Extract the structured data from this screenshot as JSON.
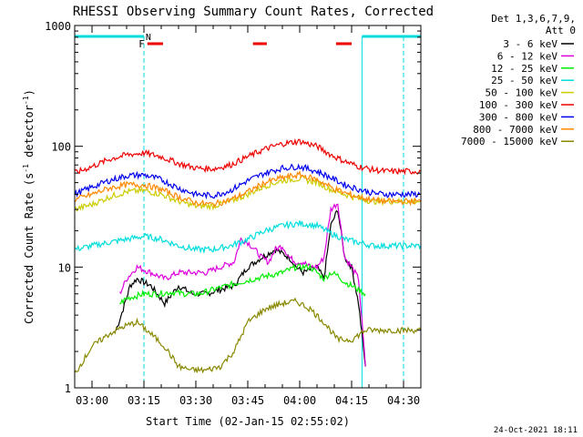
{
  "chart_data": {
    "type": "line",
    "title": "RHESSI Observing Summary Count Rates, Corrected",
    "xlabel": "Start Time (02-Jan-15 02:55:02)",
    "ylabel_main": "Corrected Count Rate (s",
    "ylabel_sup1": "-1",
    "ylabel_mid": " detector",
    "ylabel_sup2": "-1",
    "ylabel_end": ")",
    "yscale": "log",
    "ylim": [
      1,
      1000
    ],
    "xlim_minutes": [
      0,
      100
    ],
    "x_ticks": [
      {
        "label": "03:00",
        "minute": 5
      },
      {
        "label": "03:15",
        "minute": 20
      },
      {
        "label": "03:30",
        "minute": 35
      },
      {
        "label": "03:45",
        "minute": 50
      },
      {
        "label": "04:00",
        "minute": 65
      },
      {
        "label": "04:15",
        "minute": 80
      },
      {
        "label": "04:30",
        "minute": 95
      }
    ],
    "y_ticks": [
      {
        "label": "1",
        "value": 1
      },
      {
        "label": "10",
        "value": 10
      },
      {
        "label": "100",
        "value": 100
      },
      {
        "label": "1000",
        "value": 1000
      }
    ],
    "legend_header": [
      "Det 1,3,6,7,9,",
      "Att 0"
    ],
    "legend_position": "right",
    "series": [
      {
        "name": "3 - 6 keV",
        "color": "#000000",
        "points": [
          [
            12,
            3
          ],
          [
            14,
            4.5
          ],
          [
            16,
            7
          ],
          [
            18,
            8
          ],
          [
            22,
            7
          ],
          [
            26,
            5
          ],
          [
            30,
            7
          ],
          [
            34,
            6
          ],
          [
            38,
            6
          ],
          [
            42,
            6.5
          ],
          [
            46,
            7
          ],
          [
            50,
            10
          ],
          [
            54,
            12
          ],
          [
            58,
            14
          ],
          [
            62,
            12
          ],
          [
            64,
            10
          ],
          [
            66,
            9
          ],
          [
            70,
            10
          ],
          [
            72,
            8
          ],
          [
            74,
            22
          ],
          [
            76,
            30
          ],
          [
            78,
            12
          ],
          [
            80,
            10
          ],
          [
            82,
            5
          ],
          [
            84,
            1.5
          ]
        ]
      },
      {
        "name": "6 - 12 keV",
        "color": "#dd00dd",
        "points": [
          [
            13,
            6
          ],
          [
            15,
            8
          ],
          [
            18,
            10
          ],
          [
            22,
            9
          ],
          [
            26,
            8
          ],
          [
            30,
            9
          ],
          [
            34,
            9
          ],
          [
            38,
            9
          ],
          [
            42,
            10
          ],
          [
            46,
            11
          ],
          [
            48,
            17
          ],
          [
            50,
            16
          ],
          [
            52,
            14
          ],
          [
            54,
            12
          ],
          [
            56,
            11
          ],
          [
            58,
            14
          ],
          [
            60,
            15
          ],
          [
            62,
            12
          ],
          [
            64,
            11
          ],
          [
            66,
            11
          ],
          [
            68,
            10
          ],
          [
            70,
            10
          ],
          [
            72,
            12
          ],
          [
            74,
            30
          ],
          [
            76,
            34
          ],
          [
            78,
            12
          ],
          [
            80,
            10
          ],
          [
            82,
            8
          ],
          [
            84,
            1.5
          ]
        ]
      },
      {
        "name": "12 - 25 keV",
        "color": "#00ee00",
        "points": [
          [
            13,
            5
          ],
          [
            15,
            5.5
          ],
          [
            20,
            6
          ],
          [
            24,
            6
          ],
          [
            28,
            6.2
          ],
          [
            32,
            6
          ],
          [
            36,
            6
          ],
          [
            40,
            6.5
          ],
          [
            44,
            7
          ],
          [
            48,
            7.5
          ],
          [
            52,
            8
          ],
          [
            56,
            8.5
          ],
          [
            60,
            9
          ],
          [
            64,
            10
          ],
          [
            68,
            10
          ],
          [
            70,
            9
          ],
          [
            72,
            8
          ],
          [
            74,
            9
          ],
          [
            76,
            8.5
          ],
          [
            78,
            7.5
          ],
          [
            80,
            7
          ],
          [
            82,
            6.5
          ],
          [
            84,
            6
          ]
        ]
      },
      {
        "name": "25 - 50 keV",
        "color": "#00dddd",
        "points": [
          [
            0,
            14
          ],
          [
            5,
            15
          ],
          [
            10,
            16
          ],
          [
            15,
            17
          ],
          [
            20,
            18
          ],
          [
            25,
            17
          ],
          [
            30,
            15
          ],
          [
            35,
            14
          ],
          [
            40,
            14
          ],
          [
            45,
            15
          ],
          [
            50,
            17
          ],
          [
            55,
            20
          ],
          [
            60,
            22
          ],
          [
            65,
            23
          ],
          [
            70,
            22
          ],
          [
            74,
            19
          ],
          [
            78,
            17
          ],
          [
            82,
            16
          ],
          [
            86,
            15
          ],
          [
            90,
            15
          ],
          [
            95,
            15
          ],
          [
            100,
            15
          ]
        ]
      },
      {
        "name": "50 - 100 keV",
        "color": "#cccc00",
        "points": [
          [
            0,
            30
          ],
          [
            5,
            33
          ],
          [
            10,
            38
          ],
          [
            15,
            42
          ],
          [
            20,
            43
          ],
          [
            25,
            40
          ],
          [
            30,
            35
          ],
          [
            35,
            32
          ],
          [
            40,
            32
          ],
          [
            45,
            35
          ],
          [
            50,
            40
          ],
          [
            55,
            47
          ],
          [
            60,
            52
          ],
          [
            65,
            54
          ],
          [
            70,
            50
          ],
          [
            74,
            44
          ],
          [
            78,
            40
          ],
          [
            82,
            37
          ],
          [
            86,
            35
          ],
          [
            90,
            35
          ],
          [
            95,
            35
          ],
          [
            100,
            35
          ]
        ]
      },
      {
        "name": "100 - 300 keV",
        "color": "#ee0000",
        "points": [
          [
            0,
            60
          ],
          [
            5,
            68
          ],
          [
            10,
            78
          ],
          [
            15,
            85
          ],
          [
            20,
            88
          ],
          [
            25,
            82
          ],
          [
            30,
            72
          ],
          [
            35,
            66
          ],
          [
            40,
            65
          ],
          [
            45,
            70
          ],
          [
            50,
            82
          ],
          [
            55,
            95
          ],
          [
            60,
            105
          ],
          [
            65,
            110
          ],
          [
            70,
            100
          ],
          [
            74,
            85
          ],
          [
            78,
            75
          ],
          [
            82,
            68
          ],
          [
            86,
            64
          ],
          [
            90,
            62
          ],
          [
            95,
            62
          ],
          [
            100,
            62
          ]
        ]
      },
      {
        "name": "300 - 800 keV",
        "color": "#0000ee",
        "points": [
          [
            0,
            40
          ],
          [
            5,
            46
          ],
          [
            10,
            52
          ],
          [
            15,
            57
          ],
          [
            20,
            58
          ],
          [
            25,
            53
          ],
          [
            30,
            45
          ],
          [
            35,
            40
          ],
          [
            40,
            39
          ],
          [
            45,
            43
          ],
          [
            50,
            52
          ],
          [
            55,
            60
          ],
          [
            60,
            66
          ],
          [
            65,
            68
          ],
          [
            70,
            62
          ],
          [
            74,
            55
          ],
          [
            78,
            48
          ],
          [
            82,
            44
          ],
          [
            86,
            41
          ],
          [
            90,
            40
          ],
          [
            95,
            40
          ],
          [
            100,
            40
          ]
        ]
      },
      {
        "name": "800 - 7000 keV",
        "color": "#ff8800",
        "points": [
          [
            0,
            36
          ],
          [
            5,
            40
          ],
          [
            10,
            45
          ],
          [
            15,
            48
          ],
          [
            20,
            48
          ],
          [
            25,
            44
          ],
          [
            30,
            38
          ],
          [
            35,
            34
          ],
          [
            40,
            33
          ],
          [
            45,
            36
          ],
          [
            50,
            42
          ],
          [
            55,
            50
          ],
          [
            60,
            55
          ],
          [
            65,
            58
          ],
          [
            70,
            53
          ],
          [
            74,
            46
          ],
          [
            78,
            41
          ],
          [
            82,
            38
          ],
          [
            86,
            36
          ],
          [
            90,
            35
          ],
          [
            95,
            35
          ],
          [
            100,
            35
          ]
        ]
      },
      {
        "name": "7000 - 15000 keV",
        "color": "#888800",
        "points": [
          [
            0,
            1.3
          ],
          [
            5,
            2.2
          ],
          [
            10,
            2.8
          ],
          [
            14,
            3.2
          ],
          [
            18,
            3.5
          ],
          [
            22,
            2.8
          ],
          [
            26,
            2.2
          ],
          [
            30,
            1.5
          ],
          [
            34,
            1.4
          ],
          [
            38,
            1.4
          ],
          [
            42,
            1.5
          ],
          [
            46,
            2
          ],
          [
            50,
            3.5
          ],
          [
            55,
            4.5
          ],
          [
            60,
            5
          ],
          [
            64,
            5.2
          ],
          [
            68,
            4.5
          ],
          [
            72,
            3.5
          ],
          [
            76,
            2.5
          ],
          [
            80,
            2.5
          ],
          [
            84,
            3
          ],
          [
            88,
            3
          ],
          [
            92,
            3
          ],
          [
            96,
            3
          ],
          [
            100,
            3
          ]
        ]
      }
    ],
    "markers": {
      "cyan_bars": [
        {
          "from": 0,
          "to": 20
        },
        {
          "from": 83,
          "to": 100
        }
      ],
      "cyan_labels": [
        {
          "text": "N",
          "at": 20.5
        }
      ],
      "red_bars": [
        {
          "from": 21,
          "to": 25.5
        },
        {
          "from": 51.5,
          "to": 55.5
        },
        {
          "from": 75.5,
          "to": 80
        }
      ],
      "red_labels": [
        {
          "text": "F",
          "at": 18.5
        }
      ],
      "cyan_dashed_lines": [
        20,
        95
      ],
      "cyan_solid_lines": [
        83
      ]
    },
    "footer_date": "24-Oct-2021 18:11"
  }
}
